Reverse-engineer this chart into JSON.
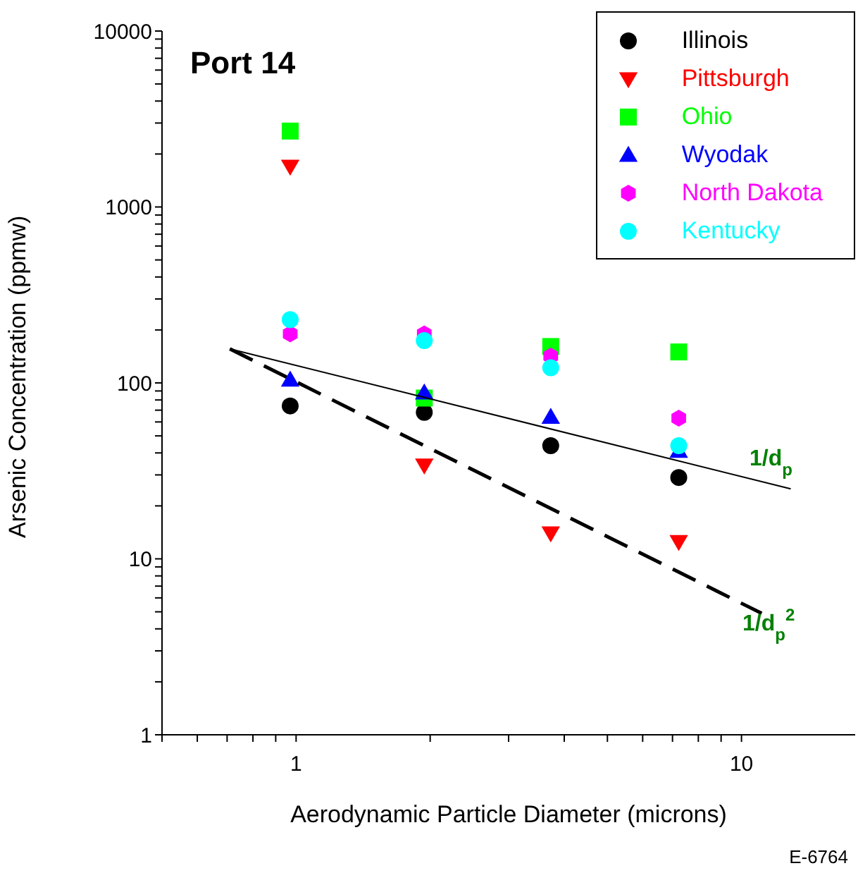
{
  "chart_data": {
    "type": "scatter",
    "title": "Port 14",
    "xlabel": "Aerodynamic Particle Diameter (microns)",
    "ylabel": "Arsenic Concentration (ppmw)",
    "x": [
      0.97,
      1.94,
      3.73,
      7.23
    ],
    "series": [
      {
        "name": "Illinois",
        "color": "#000000",
        "marker": "circle",
        "values": [
          74,
          68,
          44,
          29
        ]
      },
      {
        "name": "Pittsburgh",
        "color": "#ff0000",
        "marker": "triangle-down",
        "values": [
          1700,
          34,
          14,
          12.5
        ]
      },
      {
        "name": "Ohio",
        "color": "#00ff00",
        "marker": "square",
        "values": [
          2700,
          82,
          161,
          150
        ]
      },
      {
        "name": "Wyodak",
        "color": "#0000ff",
        "marker": "triangle",
        "values": [
          104,
          88,
          64,
          41
        ]
      },
      {
        "name": "North Dakota",
        "color": "#ff00ff",
        "values": [
          190,
          190,
          142,
          63
        ]
      },
      {
        "name": "Kentucky",
        "color": "#00ffff",
        "marker": "circle",
        "values": [
          229,
          174,
          122,
          44
        ]
      },
      {
        "type": "line",
        "color": "#000000",
        "line_style": "solid",
        "x": [
          0.71,
          12.9
        ],
        "values": [
          156,
          25
        ]
      },
      {
        "type": "line",
        "color": "#000000",
        "line_style": "dashed",
        "x": [
          0.71,
          11.1
        ],
        "values": [
          156,
          4.9
        ]
      }
    ],
    "annotations": [
      "1/d$_{p}$",
      "1/d$_{p}$$^{2}$",
      "E-6764"
    ],
    "log": "xy",
    "xlim": [
      0.5,
      18
    ],
    "ylim": [
      1,
      10000
    ],
    "xticks": [
      {
        "value": 0.5,
        "label": null
      },
      {
        "value": 0.6,
        "label": null
      },
      {
        "value": 0.7,
        "label": null
      },
      {
        "value": 0.8,
        "label": null
      },
      {
        "value": 0.9,
        "label": null
      },
      1,
      {
        "value": 2,
        "label": null
      },
      {
        "value": 3,
        "label": null
      },
      {
        "value": 4,
        "label": null
      },
      {
        "value": 5,
        "label": null
      },
      {
        "value": 6,
        "label": null
      },
      {
        "value": 7,
        "label": null
      },
      {
        "value": 8,
        "label": null
      },
      {
        "value": 9,
        "label": null
      },
      10
    ],
    "yticks": [
      1,
      {
        "value": 2,
        "label": null
      },
      {
        "value": 3,
        "label": null
      },
      {
        "value": 4,
        "label": null
      },
      {
        "value": 5,
        "label": null
      },
      {
        "value": 6,
        "label": null
      },
      {
        "value": 7,
        "label": null
      },
      {
        "value": 8,
        "label": null
      },
      {
        "value": 9,
        "label": null
      },
      10,
      {
        "value": 20,
        "label": null
      },
      {
        "value": 30,
        "label": null
      },
      {
        "value": 40,
        "label": null
      },
      {
        "value": 50,
        "label": null
      },
      {
        "value": 60,
        "label": null
      },
      {
        "value": 70,
        "label": null
      },
      {
        "value": 80,
        "label": null
      },
      {
        "value": 90,
        "label": null
      },
      100,
      {
        "value": 200,
        "label": null
      },
      {
        "value": 300,
        "label": null
      },
      {
        "value": 400,
        "label": null
      },
      {
        "value": 500,
        "label": null
      },
      {
        "value": 600,
        "label": null
      },
      {
        "value": 700,
        "label": null
      },
      {
        "value": 800,
        "label": null
      },
      {
        "value": 900,
        "label": null
      },
      1000,
      {
        "value": 2000,
        "label": null
      },
      {
        "value": 3000,
        "label": null
      },
      {
        "value": 4000,
        "label": null
      },
      {
        "value": 5000,
        "label": null
      },
      {
        "value": 6000,
        "label": null
      },
      {
        "value": 7000,
        "label": null
      },
      {
        "value": 8000,
        "label": null
      },
      {
        "value": 9000,
        "label": null
      },
      10000
    ],
    "grid": false,
    "legend": "top right"
  }
}
